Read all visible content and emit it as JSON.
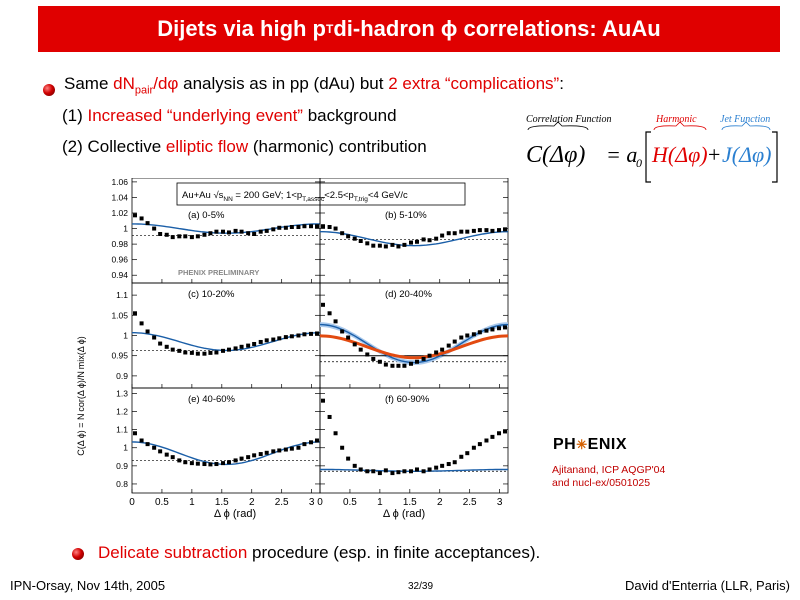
{
  "title": {
    "prefix": "Dijets via high p",
    "sub": "T",
    "suffix": " di-hadron ϕ correlations: AuAu"
  },
  "bullet1": {
    "part1": "Same ",
    "red1": "dN",
    "red1_sub": "pair",
    "red1b": "/dφ",
    "part2": " analysis as in pp (dAu) but ",
    "red2": "2 extra “complications”",
    "part3": ":"
  },
  "item1": {
    "prefix": "(1) ",
    "red": "Increased “underlying event”",
    "suffix": " background"
  },
  "item2": {
    "prefix": "(2) Collective ",
    "red": "elliptic flow",
    "suffix": " (harmonic) contribution"
  },
  "formula": {
    "lhs_label": "Correlation Function",
    "lhs": "C(Δφ)",
    "eq": "= a",
    "eq_sub": "0",
    "harmonic_label": "Harmonic",
    "harmonic": "H(Δφ)",
    "plus": "+",
    "jet_label": "Jet Function",
    "jet": "J(Δφ)",
    "colors": {
      "harmonic": "#e00000",
      "jet": "#2a7fd0"
    }
  },
  "figure": {
    "header_main": "Au+Au ",
    "header_sqrt": "√s",
    "header_sqrt_sub": "NN",
    "header_rest": " = 200 GeV;  1<p",
    "header_pt1_sub": "T,assoc",
    "header_mid": "<2.5<p",
    "header_pt2_sub": "T,trig",
    "header_end": "<4 GeV/c",
    "preliminary": "PHENIX PRELIMINARY",
    "ylabel": "C(Δ ϕ) = N cor(Δ ϕ)/N mix(Δ ϕ)",
    "xlabel": "Δ ϕ (rad)",
    "colors": {
      "harmonic_fit": "#1b5fa8",
      "band": "#a8c8ec",
      "flow_curve": "#e24a10"
    }
  },
  "chart_data": [
    {
      "type": "scatter",
      "panel": "(a) 0-5%",
      "x_ticks": [
        "0",
        "0.5",
        "1",
        "1.5",
        "2",
        "2.5",
        "3"
      ],
      "y_ticks": [
        "1.06",
        "1.04",
        "1.02",
        "1",
        "0.98",
        "0.96",
        "0.94"
      ],
      "ylim": [
        0.93,
        1.065
      ],
      "xlim": [
        0,
        3.14
      ],
      "points": [
        [
          0.05,
          1.017
        ],
        [
          0.16,
          1.013
        ],
        [
          0.26,
          1.007
        ],
        [
          0.37,
          1.0
        ],
        [
          0.47,
          0.993
        ],
        [
          0.58,
          0.992
        ],
        [
          0.68,
          0.989
        ],
        [
          0.79,
          0.99
        ],
        [
          0.89,
          0.99
        ],
        [
          1.0,
          0.989
        ],
        [
          1.1,
          0.99
        ],
        [
          1.21,
          0.992
        ],
        [
          1.31,
          0.994
        ],
        [
          1.41,
          0.996
        ],
        [
          1.52,
          0.996
        ],
        [
          1.62,
          0.995
        ],
        [
          1.73,
          0.997
        ],
        [
          1.83,
          0.996
        ],
        [
          1.94,
          0.994
        ],
        [
          2.04,
          0.993
        ],
        [
          2.15,
          0.996
        ],
        [
          2.25,
          0.997
        ],
        [
          2.36,
          0.999
        ],
        [
          2.46,
          1.001
        ],
        [
          2.57,
          1.001
        ],
        [
          2.67,
          1.002
        ],
        [
          2.78,
          1.002
        ],
        [
          2.88,
          1.003
        ],
        [
          2.99,
          1.003
        ],
        [
          3.09,
          1.003
        ]
      ],
      "harmonic": {
        "a": 1.0,
        "b": 0.006,
        "dashed_level": 0.991
      }
    },
    {
      "type": "scatter",
      "panel": "(b) 5-10%",
      "xlim": [
        0,
        3.14
      ],
      "ylim": [
        0.93,
        1.065
      ],
      "points": [
        [
          0.05,
          1.003
        ],
        [
          0.16,
          1.002
        ],
        [
          0.26,
          1.0
        ],
        [
          0.37,
          0.994
        ],
        [
          0.47,
          0.99
        ],
        [
          0.58,
          0.987
        ],
        [
          0.68,
          0.984
        ],
        [
          0.79,
          0.981
        ],
        [
          0.89,
          0.978
        ],
        [
          1.0,
          0.978
        ],
        [
          1.1,
          0.977
        ],
        [
          1.21,
          0.979
        ],
        [
          1.31,
          0.977
        ],
        [
          1.41,
          0.979
        ],
        [
          1.52,
          0.982
        ],
        [
          1.62,
          0.983
        ],
        [
          1.73,
          0.986
        ],
        [
          1.83,
          0.985
        ],
        [
          1.94,
          0.987
        ],
        [
          2.04,
          0.991
        ],
        [
          2.15,
          0.994
        ],
        [
          2.25,
          0.994
        ],
        [
          2.36,
          0.996
        ],
        [
          2.46,
          0.996
        ],
        [
          2.57,
          0.997
        ],
        [
          2.67,
          0.998
        ],
        [
          2.78,
          0.998
        ],
        [
          2.88,
          0.997
        ],
        [
          2.99,
          0.998
        ],
        [
          3.09,
          0.999
        ]
      ],
      "harmonic": {
        "a": 0.987,
        "b": 0.009,
        "dashed_level": 0.986
      }
    },
    {
      "type": "scatter",
      "panel": "(c) 10-20%",
      "y_ticks": [
        "1.1",
        "1.05",
        "1",
        "0.95",
        "0.9"
      ],
      "xlim": [
        0,
        3.14
      ],
      "ylim": [
        0.87,
        1.13
      ],
      "points": [
        [
          0.05,
          1.055
        ],
        [
          0.16,
          1.03
        ],
        [
          0.26,
          1.01
        ],
        [
          0.37,
          0.995
        ],
        [
          0.47,
          0.98
        ],
        [
          0.58,
          0.972
        ],
        [
          0.68,
          0.965
        ],
        [
          0.79,
          0.962
        ],
        [
          0.89,
          0.958
        ],
        [
          1.0,
          0.957
        ],
        [
          1.1,
          0.955
        ],
        [
          1.21,
          0.955
        ],
        [
          1.31,
          0.957
        ],
        [
          1.41,
          0.958
        ],
        [
          1.52,
          0.962
        ],
        [
          1.62,
          0.965
        ],
        [
          1.73,
          0.968
        ],
        [
          1.83,
          0.972
        ],
        [
          1.94,
          0.975
        ],
        [
          2.04,
          0.979
        ],
        [
          2.15,
          0.984
        ],
        [
          2.25,
          0.988
        ],
        [
          2.36,
          0.99
        ],
        [
          2.46,
          0.993
        ],
        [
          2.57,
          0.996
        ],
        [
          2.67,
          0.998
        ],
        [
          2.78,
          1.0
        ],
        [
          2.88,
          1.003
        ],
        [
          2.99,
          1.004
        ],
        [
          3.09,
          1.005
        ]
      ],
      "harmonic": {
        "a": 0.985,
        "b": 0.022,
        "dashed_level": 0.963
      }
    },
    {
      "type": "scatter",
      "panel": "(d) 20-40%",
      "xlim": [
        0,
        3.14
      ],
      "ylim": [
        0.87,
        1.13
      ],
      "points": [
        [
          0.05,
          1.076
        ],
        [
          0.16,
          1.055
        ],
        [
          0.26,
          1.035
        ],
        [
          0.37,
          1.01
        ],
        [
          0.47,
          0.995
        ],
        [
          0.58,
          0.978
        ],
        [
          0.68,
          0.965
        ],
        [
          0.79,
          0.953
        ],
        [
          0.89,
          0.942
        ],
        [
          1.0,
          0.935
        ],
        [
          1.1,
          0.928
        ],
        [
          1.21,
          0.925
        ],
        [
          1.31,
          0.925
        ],
        [
          1.41,
          0.925
        ],
        [
          1.52,
          0.93
        ],
        [
          1.62,
          0.935
        ],
        [
          1.73,
          0.942
        ],
        [
          1.83,
          0.95
        ],
        [
          1.94,
          0.958
        ],
        [
          2.04,
          0.965
        ],
        [
          2.15,
          0.975
        ],
        [
          2.25,
          0.985
        ],
        [
          2.36,
          0.995
        ],
        [
          2.46,
          1.0
        ],
        [
          2.57,
          1.003
        ],
        [
          2.67,
          1.008
        ],
        [
          2.78,
          1.012
        ],
        [
          2.88,
          1.015
        ],
        [
          2.99,
          1.018
        ],
        [
          3.09,
          1.02
        ]
      ],
      "harmonic": {
        "a": 0.98,
        "b": 0.047,
        "dashed_level": 0.935
      },
      "flow_curve": {
        "a": 0.972,
        "b": 0.027
      }
    },
    {
      "type": "scatter",
      "panel": "(e) 40-60%",
      "y_ticks": [
        "1.3",
        "1.2",
        "1.1",
        "1",
        "0.9",
        "0.8"
      ],
      "x_ticks": [
        "0",
        "0.5",
        "1",
        "1.5",
        "2",
        "2.5",
        "3"
      ],
      "xlim": [
        0,
        3.14
      ],
      "ylim": [
        0.75,
        1.33
      ],
      "points": [
        [
          0.05,
          1.08
        ],
        [
          0.16,
          1.04
        ],
        [
          0.26,
          1.02
        ],
        [
          0.37,
          1.0
        ],
        [
          0.47,
          0.98
        ],
        [
          0.58,
          0.962
        ],
        [
          0.68,
          0.948
        ],
        [
          0.79,
          0.93
        ],
        [
          0.89,
          0.92
        ],
        [
          1.0,
          0.915
        ],
        [
          1.1,
          0.912
        ],
        [
          1.21,
          0.91
        ],
        [
          1.31,
          0.908
        ],
        [
          1.41,
          0.91
        ],
        [
          1.52,
          0.915
        ],
        [
          1.62,
          0.92
        ],
        [
          1.73,
          0.93
        ],
        [
          1.83,
          0.94
        ],
        [
          1.94,
          0.948
        ],
        [
          2.04,
          0.958
        ],
        [
          2.15,
          0.965
        ],
        [
          2.25,
          0.972
        ],
        [
          2.36,
          0.98
        ],
        [
          2.46,
          0.985
        ],
        [
          2.57,
          0.99
        ],
        [
          2.67,
          0.995
        ],
        [
          2.78,
          1.0
        ],
        [
          2.88,
          1.02
        ],
        [
          2.99,
          1.03
        ],
        [
          3.09,
          1.04
        ]
      ],
      "harmonic": {
        "a": 0.97,
        "b": 0.062,
        "dashed_level": 0.93
      }
    },
    {
      "type": "scatter",
      "panel": "(f) 60-90%",
      "x_ticks": [
        "0",
        "0.5",
        "1",
        "1.5",
        "2",
        "2.5",
        "3"
      ],
      "xlim": [
        0,
        3.14
      ],
      "ylim": [
        0.75,
        1.33
      ],
      "points": [
        [
          0.05,
          1.26
        ],
        [
          0.16,
          1.17
        ],
        [
          0.26,
          1.08
        ],
        [
          0.37,
          1.0
        ],
        [
          0.47,
          0.94
        ],
        [
          0.58,
          0.9
        ],
        [
          0.68,
          0.88
        ],
        [
          0.79,
          0.87
        ],
        [
          0.89,
          0.87
        ],
        [
          1.0,
          0.86
        ],
        [
          1.1,
          0.875
        ],
        [
          1.21,
          0.86
        ],
        [
          1.31,
          0.865
        ],
        [
          1.41,
          0.87
        ],
        [
          1.52,
          0.87
        ],
        [
          1.62,
          0.88
        ],
        [
          1.73,
          0.87
        ],
        [
          1.83,
          0.88
        ],
        [
          1.94,
          0.89
        ],
        [
          2.04,
          0.9
        ],
        [
          2.15,
          0.91
        ],
        [
          2.25,
          0.92
        ],
        [
          2.36,
          0.95
        ],
        [
          2.46,
          0.97
        ],
        [
          2.57,
          1.0
        ],
        [
          2.67,
          1.02
        ],
        [
          2.78,
          1.04
        ],
        [
          2.88,
          1.06
        ],
        [
          2.99,
          1.08
        ],
        [
          3.09,
          1.09
        ]
      ],
      "harmonic": {
        "a": 0.875,
        "b": 0.005,
        "dashed_level": 0.87
      }
    }
  ],
  "phenix": {
    "left": "PH",
    "star": "✳",
    "right": "ENIX"
  },
  "citation": {
    "line1": "Ajitanand, ICP AQGP'04",
    "line2": "and nucl-ex/0501025"
  },
  "bullet2": {
    "red": "Delicate subtraction",
    "rest": " procedure (esp. in finite acceptances)."
  },
  "footer": {
    "left": "IPN-Orsay, Nov 14th, 2005",
    "center": "32/39",
    "right": "David d'Enterria (LLR, Paris)"
  }
}
